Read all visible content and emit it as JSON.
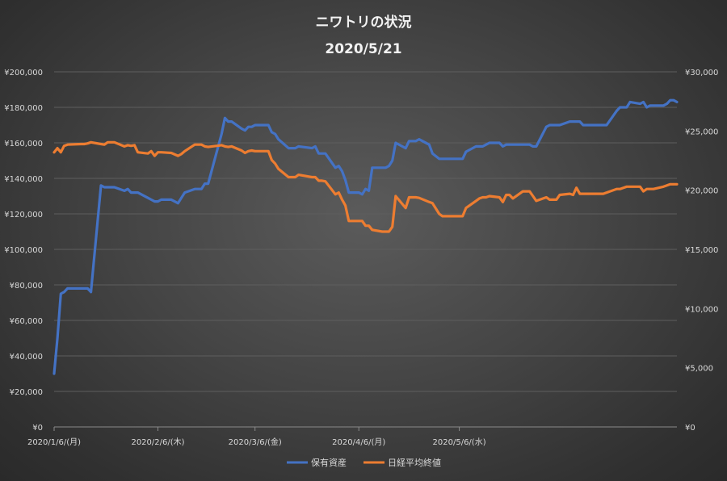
{
  "chart_data": {
    "type": "line",
    "title": "ニワトリの状況",
    "subtitle": "2020/5/21",
    "x_tick_labels": [
      "2020/1/6/(月)",
      "2020/2/6/(木)",
      "2020/3/6/(金)",
      "2020/4/6/(月)",
      "2020/5/6/(水)"
    ],
    "y_left": {
      "min": 0,
      "max": 200000,
      "ticks": [
        "¥0",
        "¥20,000",
        "¥40,000",
        "¥60,000",
        "¥80,000",
        "¥100,000",
        "¥120,000",
        "¥140,000",
        "¥160,000",
        "¥180,000",
        "¥200,000"
      ]
    },
    "y_right": {
      "min": 0,
      "max": 30000,
      "ticks": [
        "¥0",
        "¥5,000",
        "¥10,000",
        "¥15,000",
        "¥20,000",
        "¥25,000",
        "¥30,000"
      ]
    },
    "legend_position": "bottom",
    "grid": true,
    "series": [
      {
        "name": "保有資産",
        "axis": "left",
        "color": "#4472c4",
        "points": [
          [
            "2020-01-06",
            30000
          ],
          [
            "2020-01-07",
            50000
          ],
          [
            "2020-01-08",
            75000
          ],
          [
            "2020-01-09",
            76000
          ],
          [
            "2020-01-10",
            78000
          ],
          [
            "2020-01-14",
            78000
          ],
          [
            "2020-01-15",
            78000
          ],
          [
            "2020-01-16",
            78000
          ],
          [
            "2020-01-17",
            76000
          ],
          [
            "2020-01-20",
            136000
          ],
          [
            "2020-01-21",
            135000
          ],
          [
            "2020-01-22",
            135000
          ],
          [
            "2020-01-23",
            135000
          ],
          [
            "2020-01-24",
            135000
          ],
          [
            "2020-01-27",
            133000
          ],
          [
            "2020-01-28",
            134000
          ],
          [
            "2020-01-29",
            132000
          ],
          [
            "2020-01-30",
            132000
          ],
          [
            "2020-01-31",
            132000
          ],
          [
            "2020-02-03",
            129000
          ],
          [
            "2020-02-04",
            128000
          ],
          [
            "2020-02-05",
            127000
          ],
          [
            "2020-02-06",
            127000
          ],
          [
            "2020-02-07",
            128000
          ],
          [
            "2020-02-10",
            128000
          ],
          [
            "2020-02-12",
            126000
          ],
          [
            "2020-02-13",
            129000
          ],
          [
            "2020-02-14",
            132000
          ],
          [
            "2020-02-17",
            134000
          ],
          [
            "2020-02-18",
            134000
          ],
          [
            "2020-02-19",
            134000
          ],
          [
            "2020-02-20",
            137000
          ],
          [
            "2020-02-21",
            137000
          ],
          [
            "2020-02-25",
            165000
          ],
          [
            "2020-02-26",
            174000
          ],
          [
            "2020-02-27",
            172000
          ],
          [
            "2020-02-28",
            172000
          ],
          [
            "2020-03-02",
            168000
          ],
          [
            "2020-03-03",
            167000
          ],
          [
            "2020-03-04",
            169000
          ],
          [
            "2020-03-05",
            169000
          ],
          [
            "2020-03-06",
            170000
          ],
          [
            "2020-03-09",
            170000
          ],
          [
            "2020-03-10",
            170000
          ],
          [
            "2020-03-11",
            166000
          ],
          [
            "2020-03-12",
            165000
          ],
          [
            "2020-03-13",
            162000
          ],
          [
            "2020-03-16",
            157000
          ],
          [
            "2020-03-17",
            157000
          ],
          [
            "2020-03-18",
            157000
          ],
          [
            "2020-03-19",
            158000
          ],
          [
            "2020-03-23",
            157000
          ],
          [
            "2020-03-24",
            158000
          ],
          [
            "2020-03-25",
            154000
          ],
          [
            "2020-03-26",
            154000
          ],
          [
            "2020-03-27",
            154000
          ],
          [
            "2020-03-30",
            146000
          ],
          [
            "2020-03-31",
            147000
          ],
          [
            "2020-04-01",
            144000
          ],
          [
            "2020-04-02",
            139000
          ],
          [
            "2020-04-03",
            132000
          ],
          [
            "2020-04-06",
            132000
          ],
          [
            "2020-04-07",
            131000
          ],
          [
            "2020-04-08",
            134000
          ],
          [
            "2020-04-09",
            133000
          ],
          [
            "2020-04-10",
            146000
          ],
          [
            "2020-04-13",
            146000
          ],
          [
            "2020-04-14",
            146000
          ],
          [
            "2020-04-15",
            147000
          ],
          [
            "2020-04-16",
            150000
          ],
          [
            "2020-04-17",
            160000
          ],
          [
            "2020-04-20",
            157000
          ],
          [
            "2020-04-21",
            161000
          ],
          [
            "2020-04-22",
            161000
          ],
          [
            "2020-04-23",
            161000
          ],
          [
            "2020-04-24",
            162000
          ],
          [
            "2020-04-27",
            159000
          ],
          [
            "2020-04-28",
            154000
          ],
          [
            "2020-04-30",
            151000
          ],
          [
            "2020-05-01",
            151000
          ],
          [
            "2020-05-07",
            151000
          ],
          [
            "2020-05-08",
            155000
          ],
          [
            "2020-05-11",
            158000
          ],
          [
            "2020-05-12",
            158000
          ],
          [
            "2020-05-13",
            158000
          ],
          [
            "2020-05-14",
            159000
          ],
          [
            "2020-05-15",
            160000
          ],
          [
            "2020-05-18",
            160000
          ],
          [
            "2020-05-19",
            158000
          ],
          [
            "2020-05-20",
            159000
          ],
          [
            "2020-05-21",
            159000
          ],
          [
            "2020-05-22",
            159000
          ],
          [
            "2020-05-25",
            159000
          ],
          [
            "2020-05-26",
            159000
          ],
          [
            "2020-05-27",
            159000
          ],
          [
            "2020-05-28",
            158000
          ],
          [
            "2020-05-29",
            158000
          ],
          [
            "2020-06-01",
            169000
          ],
          [
            "2020-06-02",
            170000
          ],
          [
            "2020-06-03",
            170000
          ],
          [
            "2020-06-04",
            170000
          ],
          [
            "2020-06-05",
            170000
          ],
          [
            "2020-06-08",
            172000
          ],
          [
            "2020-06-09",
            172000
          ],
          [
            "2020-06-10",
            172000
          ],
          [
            "2020-06-11",
            172000
          ],
          [
            "2020-06-12",
            170000
          ],
          [
            "2020-06-15",
            170000
          ],
          [
            "2020-06-16",
            170000
          ],
          [
            "2020-06-17",
            170000
          ],
          [
            "2020-06-18",
            170000
          ],
          [
            "2020-06-19",
            170000
          ],
          [
            "2020-06-22",
            178000
          ],
          [
            "2020-06-23",
            180000
          ],
          [
            "2020-06-24",
            180000
          ],
          [
            "2020-06-25",
            180000
          ],
          [
            "2020-06-26",
            183000
          ],
          [
            "2020-06-29",
            182000
          ],
          [
            "2020-06-30",
            183000
          ],
          [
            "2020-07-01",
            180000
          ],
          [
            "2020-07-02",
            181000
          ],
          [
            "2020-07-03",
            181000
          ],
          [
            "2020-07-06",
            181000
          ],
          [
            "2020-07-07",
            182000
          ],
          [
            "2020-07-08",
            184000
          ],
          [
            "2020-07-09",
            184000
          ],
          [
            "2020-07-10",
            183000
          ]
        ]
      },
      {
        "name": "日経平均終値",
        "axis": "right",
        "color": "#ed7d31",
        "points": [
          [
            "2020-01-06",
            23200
          ],
          [
            "2020-01-07",
            23550
          ],
          [
            "2020-01-08",
            23200
          ],
          [
            "2020-01-09",
            23750
          ],
          [
            "2020-01-10",
            23850
          ],
          [
            "2020-01-14",
            23900
          ],
          [
            "2020-01-15",
            23900
          ],
          [
            "2020-01-16",
            23950
          ],
          [
            "2020-01-17",
            24050
          ],
          [
            "2020-01-20",
            23900
          ],
          [
            "2020-01-21",
            23850
          ],
          [
            "2020-01-22",
            24050
          ],
          [
            "2020-01-23",
            24050
          ],
          [
            "2020-01-24",
            24050
          ],
          [
            "2020-01-27",
            23700
          ],
          [
            "2020-01-28",
            23800
          ],
          [
            "2020-01-29",
            23750
          ],
          [
            "2020-01-30",
            23800
          ],
          [
            "2020-01-31",
            23200
          ],
          [
            "2020-02-03",
            23100
          ],
          [
            "2020-02-04",
            23300
          ],
          [
            "2020-02-05",
            22900
          ],
          [
            "2020-02-06",
            23200
          ],
          [
            "2020-02-07",
            23200
          ],
          [
            "2020-02-10",
            23150
          ],
          [
            "2020-02-12",
            22900
          ],
          [
            "2020-02-13",
            23050
          ],
          [
            "2020-02-14",
            23300
          ],
          [
            "2020-02-17",
            23850
          ],
          [
            "2020-02-18",
            23850
          ],
          [
            "2020-02-19",
            23850
          ],
          [
            "2020-02-20",
            23700
          ],
          [
            "2020-02-21",
            23650
          ],
          [
            "2020-02-25",
            23800
          ],
          [
            "2020-02-26",
            23700
          ],
          [
            "2020-02-27",
            23650
          ],
          [
            "2020-02-28",
            23700
          ],
          [
            "2020-03-02",
            23350
          ],
          [
            "2020-03-03",
            23150
          ],
          [
            "2020-03-04",
            23300
          ],
          [
            "2020-03-05",
            23350
          ],
          [
            "2020-03-06",
            23300
          ],
          [
            "2020-03-09",
            23300
          ],
          [
            "2020-03-10",
            23300
          ],
          [
            "2020-03-11",
            22550
          ],
          [
            "2020-03-12",
            22250
          ],
          [
            "2020-03-13",
            21800
          ],
          [
            "2020-03-16",
            21100
          ],
          [
            "2020-03-17",
            21100
          ],
          [
            "2020-03-18",
            21100
          ],
          [
            "2020-03-19",
            21300
          ],
          [
            "2020-03-23",
            21100
          ],
          [
            "2020-03-24",
            21100
          ],
          [
            "2020-03-25",
            20800
          ],
          [
            "2020-03-26",
            20800
          ],
          [
            "2020-03-27",
            20750
          ],
          [
            "2020-03-30",
            19650
          ],
          [
            "2020-03-31",
            19800
          ],
          [
            "2020-04-01",
            19200
          ],
          [
            "2020-04-02",
            18700
          ],
          [
            "2020-04-03",
            17400
          ],
          [
            "2020-04-06",
            17400
          ],
          [
            "2020-04-07",
            17400
          ],
          [
            "2020-04-08",
            17000
          ],
          [
            "2020-04-09",
            17000
          ],
          [
            "2020-04-10",
            16650
          ],
          [
            "2020-04-13",
            16500
          ],
          [
            "2020-04-14",
            16500
          ],
          [
            "2020-04-15",
            16500
          ],
          [
            "2020-04-16",
            16900
          ],
          [
            "2020-04-17",
            19500
          ],
          [
            "2020-04-20",
            18500
          ],
          [
            "2020-04-21",
            19400
          ],
          [
            "2020-04-22",
            19400
          ],
          [
            "2020-04-23",
            19400
          ],
          [
            "2020-04-24",
            19350
          ],
          [
            "2020-04-27",
            19000
          ],
          [
            "2020-04-28",
            18900
          ],
          [
            "2020-04-30",
            18000
          ],
          [
            "2020-05-01",
            17800
          ],
          [
            "2020-05-07",
            17800
          ],
          [
            "2020-05-08",
            18500
          ],
          [
            "2020-05-11",
            19100
          ],
          [
            "2020-05-12",
            19300
          ],
          [
            "2020-05-13",
            19400
          ],
          [
            "2020-05-14",
            19400
          ],
          [
            "2020-05-15",
            19500
          ],
          [
            "2020-05-18",
            19400
          ],
          [
            "2020-05-19",
            19000
          ],
          [
            "2020-05-20",
            19600
          ],
          [
            "2020-05-21",
            19600
          ],
          [
            "2020-05-22",
            19300
          ],
          [
            "2020-05-25",
            19900
          ],
          [
            "2020-05-26",
            19900
          ],
          [
            "2020-05-27",
            19900
          ],
          [
            "2020-05-28",
            19500
          ],
          [
            "2020-05-29",
            19100
          ],
          [
            "2020-06-01",
            19400
          ],
          [
            "2020-06-02",
            19200
          ],
          [
            "2020-06-03",
            19200
          ],
          [
            "2020-06-04",
            19200
          ],
          [
            "2020-06-05",
            19600
          ],
          [
            "2020-06-08",
            19700
          ],
          [
            "2020-06-09",
            19600
          ],
          [
            "2020-06-10",
            20200
          ],
          [
            "2020-06-11",
            19700
          ],
          [
            "2020-06-12",
            19700
          ],
          [
            "2020-06-15",
            19700
          ],
          [
            "2020-06-16",
            19700
          ],
          [
            "2020-06-17",
            19700
          ],
          [
            "2020-06-18",
            19700
          ],
          [
            "2020-06-19",
            19800
          ],
          [
            "2020-06-22",
            20100
          ],
          [
            "2020-06-23",
            20100
          ],
          [
            "2020-06-24",
            20200
          ],
          [
            "2020-06-25",
            20300
          ],
          [
            "2020-06-26",
            20300
          ],
          [
            "2020-06-29",
            20300
          ],
          [
            "2020-06-30",
            19900
          ],
          [
            "2020-07-01",
            20100
          ],
          [
            "2020-07-02",
            20100
          ],
          [
            "2020-07-03",
            20100
          ],
          [
            "2020-07-06",
            20300
          ],
          [
            "2020-07-07",
            20400
          ],
          [
            "2020-07-08",
            20500
          ],
          [
            "2020-07-09",
            20500
          ],
          [
            "2020-07-10",
            20500
          ]
        ]
      }
    ]
  }
}
